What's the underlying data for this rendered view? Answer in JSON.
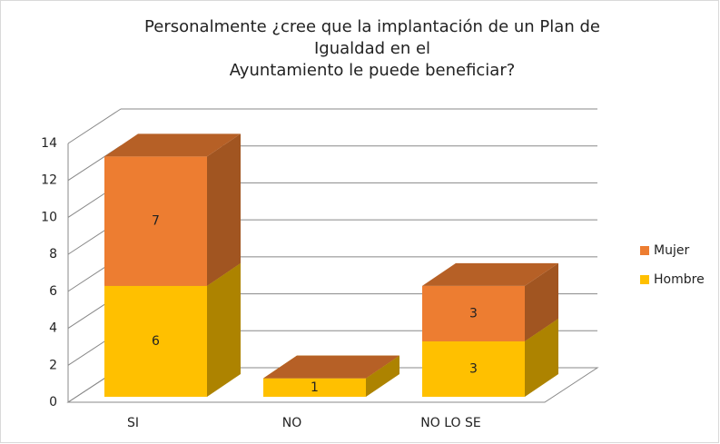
{
  "chart_data": {
    "type": "bar3d_stacked",
    "title": [
      "Personalmente ¿cree que la implantación de un Plan de",
      "Igualdad en el",
      "Ayuntamiento le puede beneficiar?"
    ],
    "categories": [
      "SI",
      "NO",
      "NO LO SE"
    ],
    "series": [
      {
        "name": "Hombre",
        "color": "#FFC000",
        "values": [
          6,
          1,
          3
        ]
      },
      {
        "name": "Mujer",
        "color": "#ED7D31",
        "values": [
          7,
          0,
          3
        ]
      }
    ],
    "ylim": [
      0,
      14
    ],
    "yticks": [
      0,
      2,
      4,
      6,
      8,
      10,
      12,
      14
    ],
    "grid": true,
    "legend": "right"
  }
}
